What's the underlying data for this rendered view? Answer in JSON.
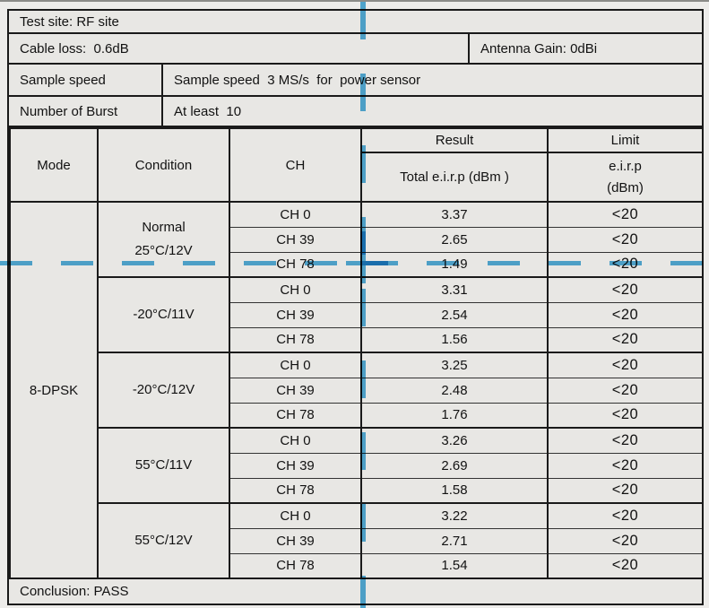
{
  "info": {
    "test_site": "Test site: RF site",
    "cable_loss": "Cable loss:  0.6dB",
    "antenna_gain": "Antenna Gain: 0dBi",
    "sample_speed_label": "Sample speed",
    "sample_speed_value": "Sample speed  3 MS/s  for  power sensor",
    "burst_label": "Number of Burst",
    "burst_value": "At least  10"
  },
  "table": {
    "headers": {
      "mode": "Mode",
      "condition": "Condition",
      "ch": "CH",
      "result": "Result",
      "limit": "Limit",
      "result_sub": "Total e.i.r.p  (dBm )",
      "limit_sub_line1": "e.i.r.p",
      "limit_sub_line2": "(dBm)"
    },
    "mode": "8-DPSK",
    "groups": [
      {
        "condition": [
          "Normal",
          "25°C/12V"
        ],
        "rows": [
          {
            "ch": "CH 0",
            "result": "3.37",
            "limit": "<20"
          },
          {
            "ch": "CH 39",
            "result": "2.65",
            "limit": "<20"
          },
          {
            "ch": "CH 78",
            "result": "1.49",
            "limit": "<20"
          }
        ]
      },
      {
        "condition": [
          "-20°C/11V"
        ],
        "rows": [
          {
            "ch": "CH 0",
            "result": "3.31",
            "limit": "<20"
          },
          {
            "ch": "CH 39",
            "result": "2.54",
            "limit": "<20"
          },
          {
            "ch": "CH 78",
            "result": "1.56",
            "limit": "<20"
          }
        ]
      },
      {
        "condition": [
          "-20°C/12V"
        ],
        "rows": [
          {
            "ch": "CH 0",
            "result": "3.25",
            "limit": "<20"
          },
          {
            "ch": "CH 39",
            "result": "2.48",
            "limit": "<20"
          },
          {
            "ch": "CH 78",
            "result": "1.76",
            "limit": "<20"
          }
        ]
      },
      {
        "condition": [
          "55°C/11V"
        ],
        "rows": [
          {
            "ch": "CH 0",
            "result": "3.26",
            "limit": "<20"
          },
          {
            "ch": "CH 39",
            "result": "2.69",
            "limit": "<20"
          },
          {
            "ch": "CH 78",
            "result": "1.58",
            "limit": "<20"
          }
        ]
      },
      {
        "condition": [
          "55°C/12V"
        ],
        "rows": [
          {
            "ch": "CH 0",
            "result": "3.22",
            "limit": "<20"
          },
          {
            "ch": "CH 39",
            "result": "2.71",
            "limit": "<20"
          },
          {
            "ch": "CH 78",
            "result": "1.54",
            "limit": "<20"
          }
        ]
      }
    ]
  },
  "conclusion": "Conclusion: PASS",
  "annotation": {
    "color": "#45a9dc"
  }
}
